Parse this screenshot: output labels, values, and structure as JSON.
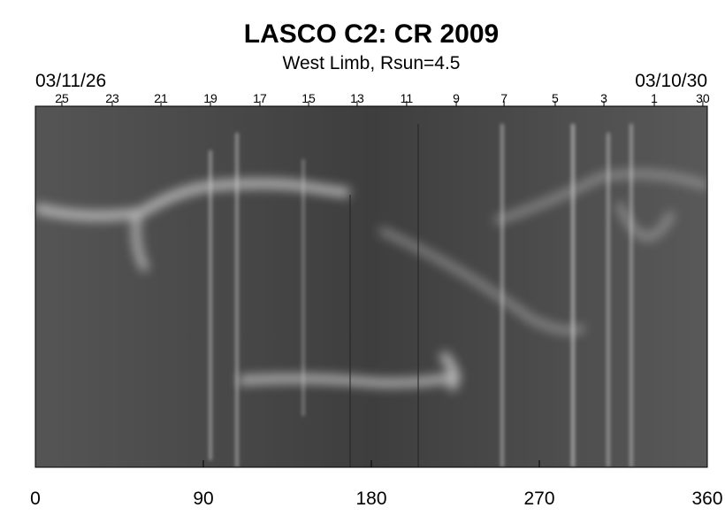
{
  "chart_data": {
    "type": "image",
    "title": "LASCO C2: CR 2009",
    "subtitle": "West Limb, Rsun=4.5",
    "xlim": [
      0,
      360
    ],
    "xticks": [
      0,
      90,
      180,
      270,
      360
    ],
    "top_axis": {
      "start_label": "03/11/26",
      "end_label": "03/10/30",
      "ticks": [
        {
          "value": 14.2,
          "label": "25"
        },
        {
          "value": 41.2,
          "label": "23"
        },
        {
          "value": 67.3,
          "label": "21"
        },
        {
          "value": 93.8,
          "label": "19"
        },
        {
          "value": 120.3,
          "label": "17"
        },
        {
          "value": 146.4,
          "label": "15"
        },
        {
          "value": 172.4,
          "label": "13"
        },
        {
          "value": 198.9,
          "label": "11"
        },
        {
          "value": 225.5,
          "label": "9"
        },
        {
          "value": 251.1,
          "label": "7"
        },
        {
          "value": 278.5,
          "label": "5"
        },
        {
          "value": 304.6,
          "label": "3"
        },
        {
          "value": 331.6,
          "label": "1"
        },
        {
          "value": 357.6,
          "label": "30"
        }
      ]
    },
    "colormap": "gray"
  }
}
